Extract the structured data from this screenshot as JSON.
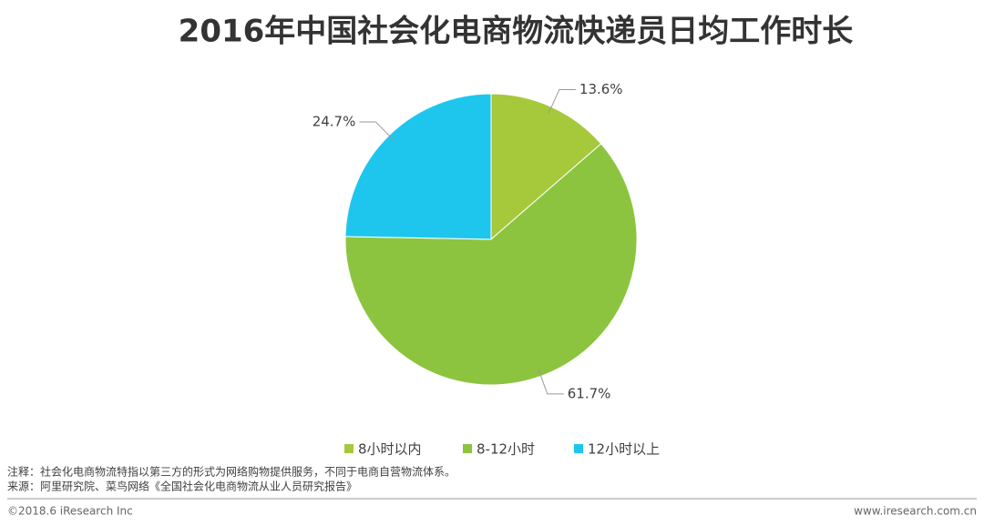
{
  "chart_data": {
    "type": "pie",
    "title": "2016年中国社会化电商物流快递员日均工作时长",
    "categories": [
      "8小时以内",
      "8-12小时",
      "12小时以上"
    ],
    "values": [
      13.6,
      61.7,
      24.7
    ],
    "value_labels": [
      "13.6%",
      "61.7%",
      "24.7%"
    ],
    "colors": [
      "#a6c93b",
      "#8cc43f",
      "#1ec6ee"
    ],
    "legend": "bottom",
    "note": "注释：社会化电商物流特指以第三方的形式为网络购物提供服务，不同于电商自营物流体系。",
    "source": "来源：阿里研究院、菜鸟网络《全国社会化电商物流从业人员研究报告》",
    "copyright": "©2018.6 iResearch Inc",
    "website": "www.iresearch.com.cn"
  }
}
